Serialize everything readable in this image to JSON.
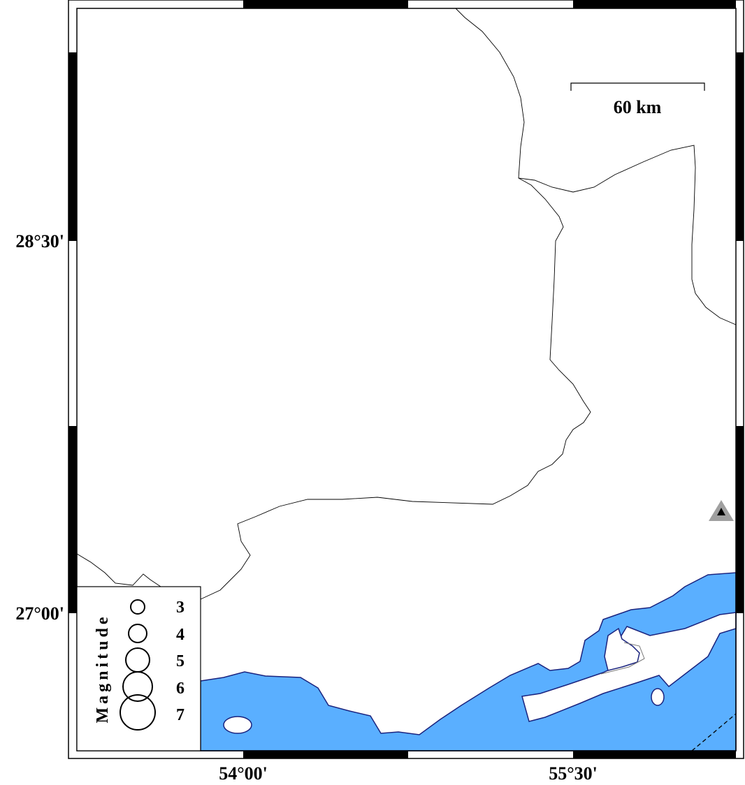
{
  "map": {
    "colors": {
      "sea": "#5aafff",
      "coast": "#1a237e",
      "land": "#ffffff",
      "border": "#000000",
      "station": "#a0a0a0"
    },
    "latitude_labels": [
      "28°30'",
      "27°00'"
    ],
    "longitude_labels": [
      "54°00'",
      "55°30'"
    ],
    "scale_bar": {
      "label": "60 km"
    },
    "legend": {
      "title": "Magnitude",
      "entries": [
        "3",
        "4",
        "5",
        "6",
        "7"
      ]
    },
    "markers": [
      {
        "type": "station-triangle-icon"
      }
    ]
  }
}
